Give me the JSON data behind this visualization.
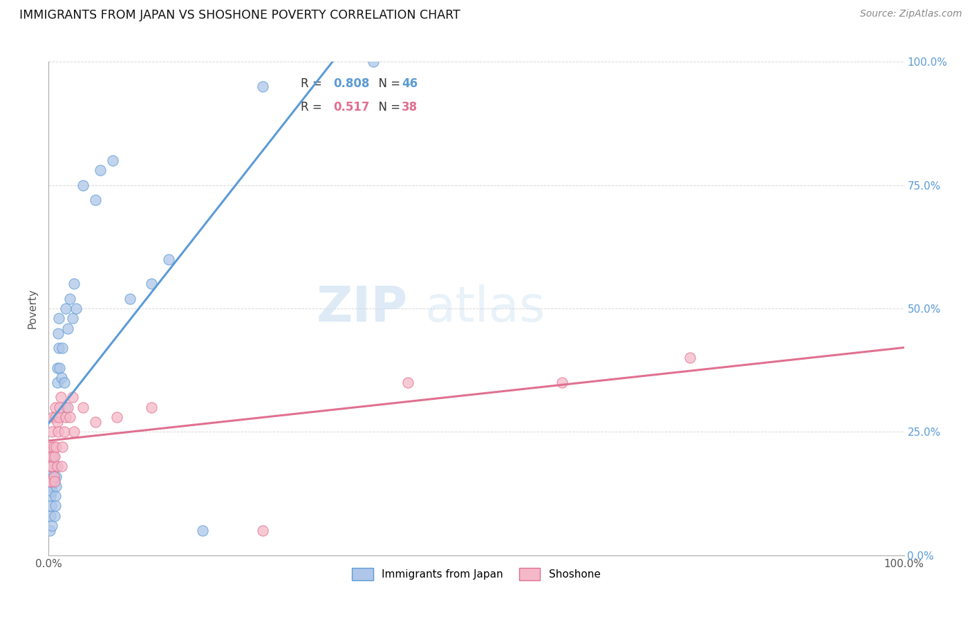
{
  "title": "IMMIGRANTS FROM JAPAN VS SHOSHONE POVERTY CORRELATION CHART",
  "source": "Source: ZipAtlas.com",
  "ylabel": "Poverty",
  "legend_labels": [
    "Immigrants from Japan",
    "Shoshone"
  ],
  "r_japan": 0.808,
  "n_japan": 46,
  "r_shoshone": 0.517,
  "n_shoshone": 38,
  "japan_color": "#aec6e8",
  "shoshone_color": "#f5b8c8",
  "japan_line_color": "#5b9bd5",
  "shoshone_line_color": "#e07090",
  "japan_scatter_x": [
    0.001,
    0.002,
    0.002,
    0.003,
    0.003,
    0.003,
    0.004,
    0.004,
    0.005,
    0.005,
    0.005,
    0.006,
    0.006,
    0.007,
    0.007,
    0.008,
    0.008,
    0.008,
    0.009,
    0.009,
    0.01,
    0.01,
    0.011,
    0.012,
    0.012,
    0.013,
    0.015,
    0.016,
    0.018,
    0.02,
    0.02,
    0.022,
    0.025,
    0.028,
    0.03,
    0.032,
    0.04,
    0.055,
    0.06,
    0.075,
    0.095,
    0.12,
    0.14,
    0.18,
    0.25,
    0.38
  ],
  "japan_scatter_y": [
    0.05,
    0.08,
    0.12,
    0.1,
    0.14,
    0.16,
    0.06,
    0.13,
    0.15,
    0.17,
    0.18,
    0.16,
    0.2,
    0.08,
    0.15,
    0.12,
    0.1,
    0.18,
    0.14,
    0.16,
    0.35,
    0.38,
    0.45,
    0.42,
    0.48,
    0.38,
    0.36,
    0.42,
    0.35,
    0.3,
    0.5,
    0.46,
    0.52,
    0.48,
    0.55,
    0.5,
    0.75,
    0.72,
    0.78,
    0.8,
    0.52,
    0.55,
    0.6,
    0.05,
    0.95,
    1.0
  ],
  "shoshone_scatter_x": [
    0.001,
    0.002,
    0.002,
    0.003,
    0.003,
    0.004,
    0.004,
    0.005,
    0.005,
    0.006,
    0.006,
    0.007,
    0.007,
    0.008,
    0.008,
    0.009,
    0.01,
    0.01,
    0.011,
    0.012,
    0.013,
    0.014,
    0.015,
    0.016,
    0.018,
    0.02,
    0.022,
    0.025,
    0.028,
    0.03,
    0.04,
    0.055,
    0.08,
    0.12,
    0.25,
    0.42,
    0.6,
    0.75
  ],
  "shoshone_scatter_y": [
    0.15,
    0.18,
    0.2,
    0.22,
    0.15,
    0.25,
    0.18,
    0.2,
    0.28,
    0.16,
    0.22,
    0.15,
    0.2,
    0.28,
    0.3,
    0.22,
    0.18,
    0.27,
    0.25,
    0.28,
    0.3,
    0.32,
    0.18,
    0.22,
    0.25,
    0.28,
    0.3,
    0.28,
    0.32,
    0.25,
    0.3,
    0.27,
    0.28,
    0.3,
    0.05,
    0.35,
    0.35,
    0.4
  ]
}
